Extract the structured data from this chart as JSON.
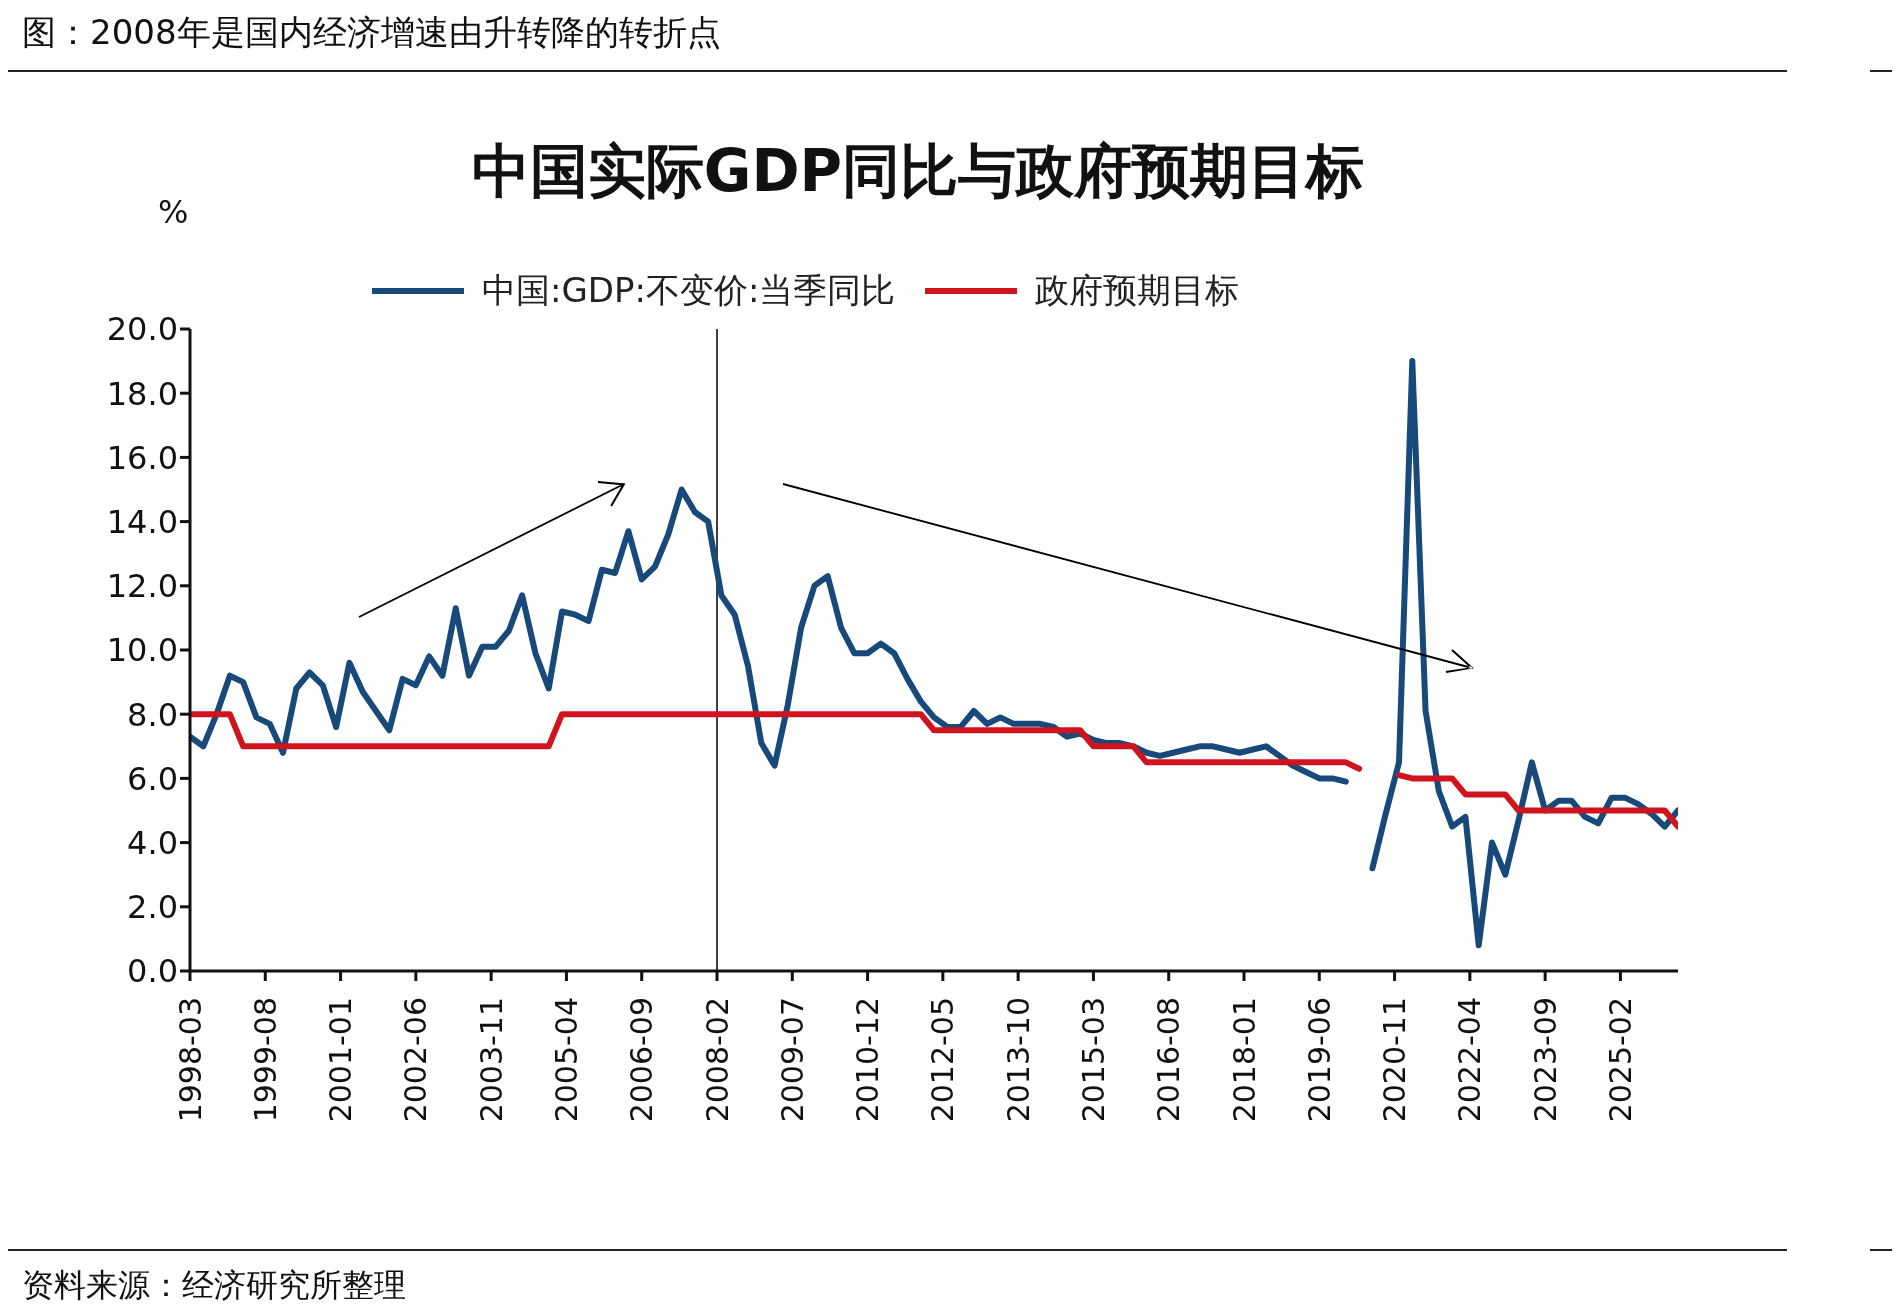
{
  "chart_data": {
    "type": "line",
    "title": "图：2008年是国内经济增速由升转降的转折点",
    "subtitle": "中国实际GDP同比与政府预期目标",
    "ylabel": "%",
    "x": [
      "1998-03",
      "1998-06",
      "1998-09",
      "1998-12",
      "1999-03",
      "1999-06",
      "1999-09",
      "1999-12",
      "2000-03",
      "2000-06",
      "2000-09",
      "2000-12",
      "2001-03",
      "2001-06",
      "2001-09",
      "2001-12",
      "2002-03",
      "2002-06",
      "2002-09",
      "2002-12",
      "2003-03",
      "2003-06",
      "2003-09",
      "2003-12",
      "2004-03",
      "2004-06",
      "2004-09",
      "2004-12",
      "2005-03",
      "2005-06",
      "2005-09",
      "2005-12",
      "2006-03",
      "2006-06",
      "2006-09",
      "2006-12",
      "2007-03",
      "2007-06",
      "2007-09",
      "2007-12",
      "2008-03",
      "2008-06",
      "2008-09",
      "2008-12",
      "2009-03",
      "2009-06",
      "2009-09",
      "2009-12",
      "2010-03",
      "2010-06",
      "2010-09",
      "2010-12",
      "2011-03",
      "2011-06",
      "2011-09",
      "2011-12",
      "2012-03",
      "2012-06",
      "2012-09",
      "2012-12",
      "2013-03",
      "2013-06",
      "2013-09",
      "2013-12",
      "2014-03",
      "2014-06",
      "2014-09",
      "2014-12",
      "2015-03",
      "2015-06",
      "2015-09",
      "2015-12",
      "2016-03",
      "2016-06",
      "2016-09",
      "2016-12",
      "2017-03",
      "2017-06",
      "2017-09",
      "2017-12",
      "2018-03",
      "2018-06",
      "2018-09",
      "2018-12",
      "2019-03",
      "2019-06",
      "2019-09",
      "2019-12",
      "2020-03",
      "2020-06",
      "2020-09",
      "2020-12",
      "2021-03",
      "2021-06",
      "2021-09",
      "2021-12",
      "2022-03",
      "2022-06",
      "2022-09",
      "2022-12",
      "2023-03",
      "2023-06",
      "2023-09",
      "2023-12",
      "2024-03",
      "2024-06",
      "2024-09",
      "2024-12",
      "2025-03",
      "2025-06",
      "2025-09",
      "2025-12",
      "2026-03"
    ],
    "series": [
      {
        "name": "中国:GDP:不变价:当季同比",
        "color": "#17497a",
        "values": [
          7.3,
          7.0,
          8.0,
          9.2,
          9.0,
          7.9,
          7.7,
          6.8,
          8.8,
          9.3,
          8.9,
          7.6,
          9.6,
          8.7,
          8.1,
          7.5,
          9.1,
          8.9,
          9.8,
          9.2,
          11.3,
          9.2,
          10.1,
          10.1,
          10.6,
          11.7,
          9.9,
          8.8,
          11.2,
          11.1,
          10.9,
          12.5,
          12.4,
          13.7,
          12.2,
          12.6,
          13.6,
          15.0,
          14.3,
          14.0,
          11.7,
          11.1,
          9.5,
          7.1,
          6.4,
          8.3,
          10.7,
          12.0,
          12.3,
          10.7,
          9.9,
          9.9,
          10.2,
          9.9,
          9.1,
          8.4,
          7.9,
          7.6,
          7.6,
          8.1,
          7.7,
          7.9,
          7.7,
          7.7,
          7.7,
          7.6,
          7.3,
          7.4,
          7.2,
          7.1,
          7.1,
          7.0,
          6.8,
          6.7,
          6.8,
          6.9,
          7.0,
          7.0,
          6.9,
          6.8,
          6.9,
          7.0,
          6.7,
          6.4,
          6.2,
          6.0,
          6.0,
          5.9,
          null,
          3.2,
          4.9,
          6.5,
          19.0,
          8.1,
          5.6,
          4.5,
          4.8,
          0.8,
          4.0,
          3.0,
          4.7,
          6.5,
          5.0,
          5.3,
          5.3,
          4.8,
          4.6,
          5.4,
          5.4,
          5.2,
          4.9,
          4.5,
          5.0
        ]
      },
      {
        "name": "政府预期目标",
        "color": "#d0141e",
        "values": [
          8,
          8,
          8,
          8,
          7,
          7,
          7,
          7,
          7,
          7,
          7,
          7,
          7,
          7,
          7,
          7,
          7,
          7,
          7,
          7,
          7,
          7,
          7,
          7,
          7,
          7,
          7,
          7,
          8,
          8,
          8,
          8,
          8,
          8,
          8,
          8,
          8,
          8,
          8,
          8,
          8,
          8,
          8,
          8,
          8,
          8,
          8,
          8,
          8,
          8,
          8,
          8,
          8,
          8,
          8,
          8,
          7.5,
          7.5,
          7.5,
          7.5,
          7.5,
          7.5,
          7.5,
          7.5,
          7.5,
          7.5,
          7.5,
          7.5,
          7,
          7,
          7,
          7,
          6.5,
          6.5,
          6.5,
          6.5,
          6.5,
          6.5,
          6.5,
          6.5,
          6.5,
          6.5,
          6.5,
          6.5,
          6.5,
          6.5,
          6.5,
          6.5,
          6.3,
          null,
          null,
          6.1,
          6,
          6,
          6,
          6,
          5.5,
          5.5,
          5.5,
          5.5,
          5,
          5,
          5,
          5,
          5,
          5,
          5,
          5,
          5,
          5,
          5,
          5,
          4.5
        ]
      }
    ],
    "xlim": [
      "1998-03",
      "2026-03"
    ],
    "xticks": [
      "1998-03",
      "1999-08",
      "2001-01",
      "2002-06",
      "2003-11",
      "2005-04",
      "2006-09",
      "2008-02",
      "2009-07",
      "2010-12",
      "2012-05",
      "2013-10",
      "2015-03",
      "2016-08",
      "2018-01",
      "2019-06",
      "2020-11",
      "2022-04",
      "2023-09",
      "2025-02"
    ],
    "ylim": [
      0,
      20
    ],
    "yticks": [
      {
        "value": 0,
        "label": "0.0"
      },
      {
        "value": 2,
        "label": "2.0"
      },
      {
        "value": 4,
        "label": "4.0"
      },
      {
        "value": 6,
        "label": "6.0"
      },
      {
        "value": 8,
        "label": "8.0"
      },
      {
        "value": 10,
        "label": "10.0"
      },
      {
        "value": 12,
        "label": "12.0"
      },
      {
        "value": 14,
        "label": "14.0"
      },
      {
        "value": 16,
        "label": "16.0"
      },
      {
        "value": 18,
        "label": "18.0"
      },
      {
        "value": 20,
        "label": "20.0"
      }
    ],
    "ref_lines": [
      {
        "axis": "x",
        "value": "2008-02",
        "color": "#000000"
      }
    ],
    "legend": "top",
    "annotations": [
      "资料来源：经济研究所整理"
    ]
  }
}
